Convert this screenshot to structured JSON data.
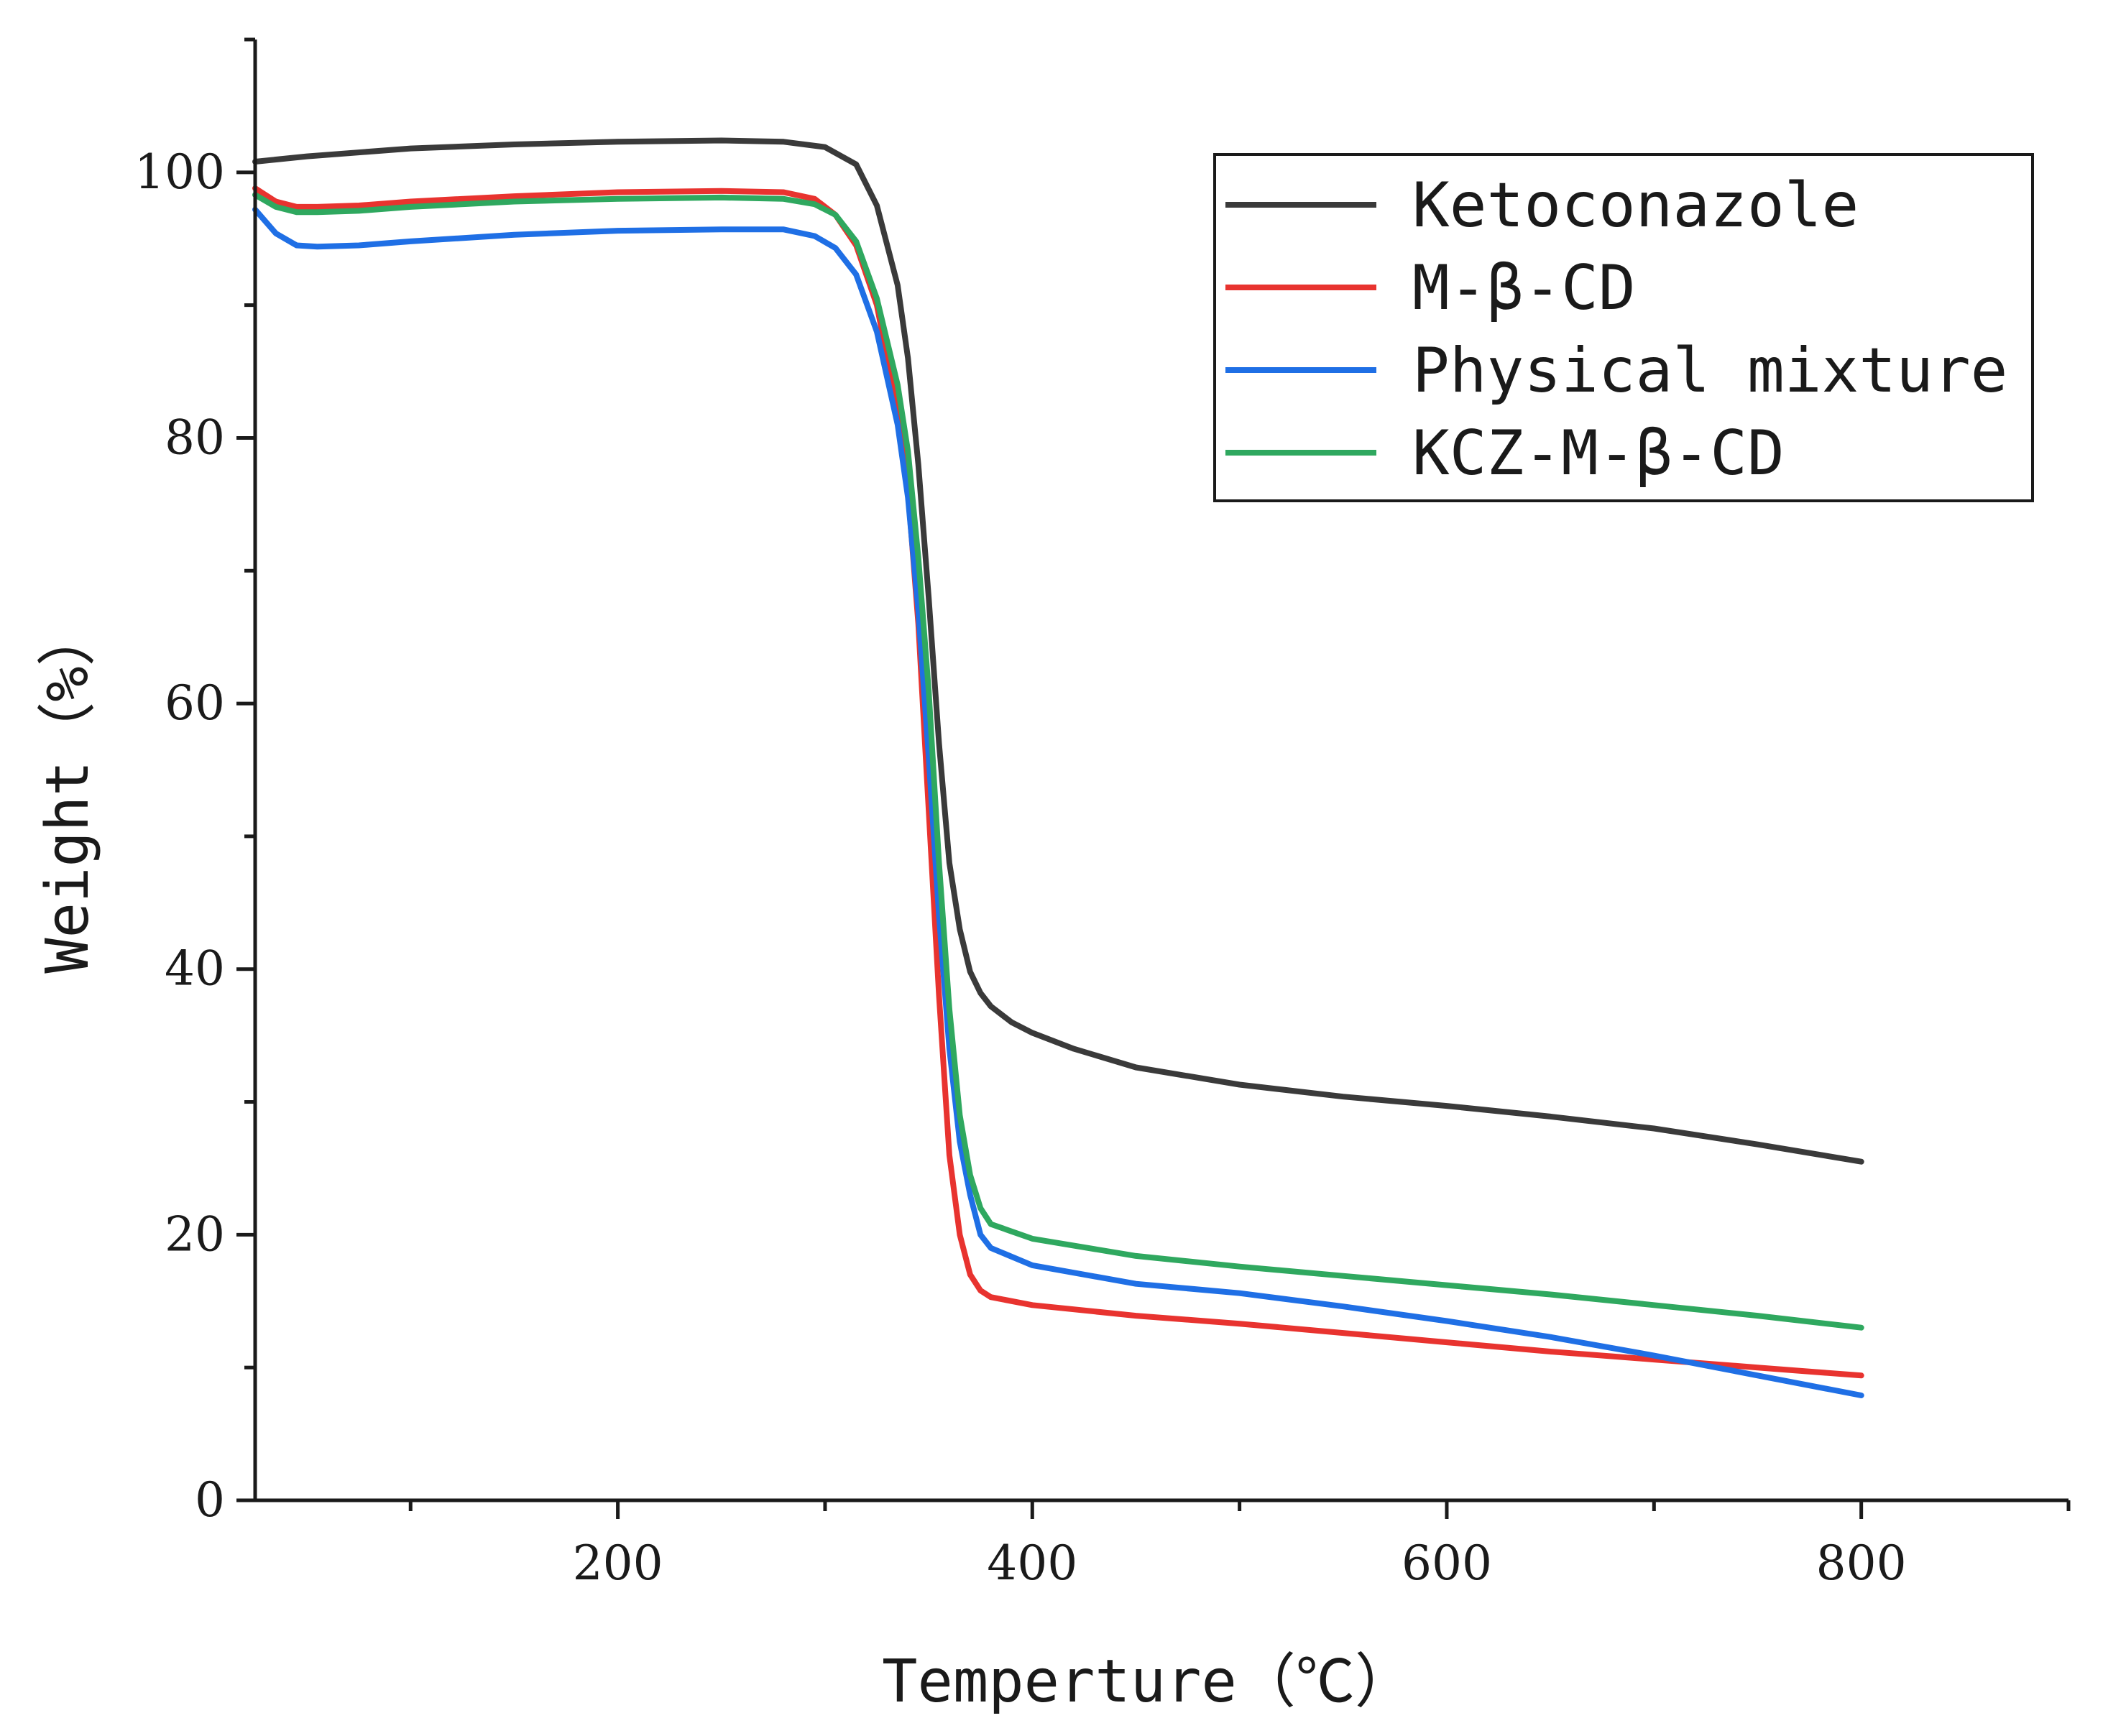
{
  "chart_data": {
    "type": "line",
    "title": "",
    "xlabel": "Temperture（℃）",
    "ylabel": "Weight（%）",
    "xlim": [
      25,
      900
    ],
    "ylim": [
      0,
      110
    ],
    "xticks": [
      200,
      400,
      600,
      800
    ],
    "xticks_minor": [
      100,
      300,
      500,
      700,
      900
    ],
    "yticks": [
      0,
      20,
      40,
      60,
      80,
      100
    ],
    "yticks_minor": [
      10,
      30,
      50,
      70,
      90,
      110
    ],
    "grid": false,
    "legend_position": "top-right",
    "series": [
      {
        "name": "Ketoconazole",
        "color": "#3a3a3a",
        "x": [
          25,
          50,
          100,
          150,
          200,
          250,
          280,
          300,
          315,
          325,
          335,
          340,
          345,
          350,
          355,
          360,
          365,
          370,
          375,
          380,
          390,
          400,
          420,
          450,
          500,
          550,
          600,
          650,
          700,
          750,
          800
        ],
        "y": [
          100.8,
          101.2,
          101.8,
          102.1,
          102.3,
          102.4,
          102.3,
          101.9,
          100.6,
          97.5,
          91.5,
          86.0,
          78.0,
          68.0,
          57.0,
          48.0,
          43.0,
          39.8,
          38.2,
          37.2,
          36.0,
          35.2,
          34.0,
          32.6,
          31.3,
          30.4,
          29.7,
          28.9,
          28.0,
          26.8,
          25.5
        ]
      },
      {
        "name": "M-β-CD",
        "color": "#e8332f",
        "x": [
          25,
          35,
          45,
          55,
          75,
          100,
          150,
          200,
          250,
          280,
          295,
          305,
          315,
          325,
          335,
          340,
          345,
          350,
          355,
          360,
          365,
          370,
          375,
          380,
          400,
          450,
          500,
          550,
          600,
          650,
          700,
          750,
          800
        ],
        "y": [
          98.8,
          97.8,
          97.4,
          97.4,
          97.5,
          97.8,
          98.2,
          98.5,
          98.6,
          98.5,
          98.0,
          96.8,
          94.5,
          90.0,
          82.0,
          76.0,
          66.0,
          52.0,
          38.0,
          26.0,
          20.0,
          17.0,
          15.8,
          15.3,
          14.7,
          13.9,
          13.3,
          12.6,
          11.9,
          11.2,
          10.6,
          10.0,
          9.4
        ]
      },
      {
        "name": "Physical mixture",
        "color": "#1f6fe5",
        "x": [
          25,
          35,
          45,
          55,
          75,
          100,
          150,
          200,
          250,
          280,
          295,
          305,
          315,
          325,
          335,
          340,
          345,
          350,
          355,
          360,
          365,
          370,
          375,
          380,
          400,
          450,
          500,
          550,
          600,
          650,
          700,
          750,
          800
        ],
        "y": [
          97.2,
          95.4,
          94.5,
          94.4,
          94.5,
          94.8,
          95.3,
          95.6,
          95.7,
          95.7,
          95.2,
          94.3,
          92.3,
          88.0,
          81.0,
          75.5,
          67.0,
          56.0,
          44.0,
          34.0,
          27.0,
          23.0,
          20.0,
          19.0,
          17.7,
          16.3,
          15.6,
          14.6,
          13.5,
          12.3,
          10.9,
          9.4,
          7.9
        ]
      },
      {
        "name": "KCZ-M-β-CD",
        "color": "#2fa85f",
        "x": [
          25,
          35,
          45,
          55,
          75,
          100,
          150,
          200,
          250,
          280,
          295,
          305,
          315,
          325,
          335,
          340,
          345,
          350,
          355,
          360,
          365,
          370,
          375,
          380,
          400,
          450,
          500,
          550,
          600,
          650,
          700,
          750,
          800
        ],
        "y": [
          98.3,
          97.4,
          97.0,
          97.0,
          97.1,
          97.4,
          97.8,
          98.0,
          98.1,
          98.0,
          97.6,
          96.8,
          94.8,
          90.5,
          84.0,
          79.0,
          71.0,
          61.0,
          48.0,
          37.0,
          29.0,
          24.5,
          22.0,
          20.8,
          19.7,
          18.4,
          17.6,
          16.9,
          16.2,
          15.5,
          14.7,
          13.9,
          13.0
        ]
      }
    ]
  }
}
